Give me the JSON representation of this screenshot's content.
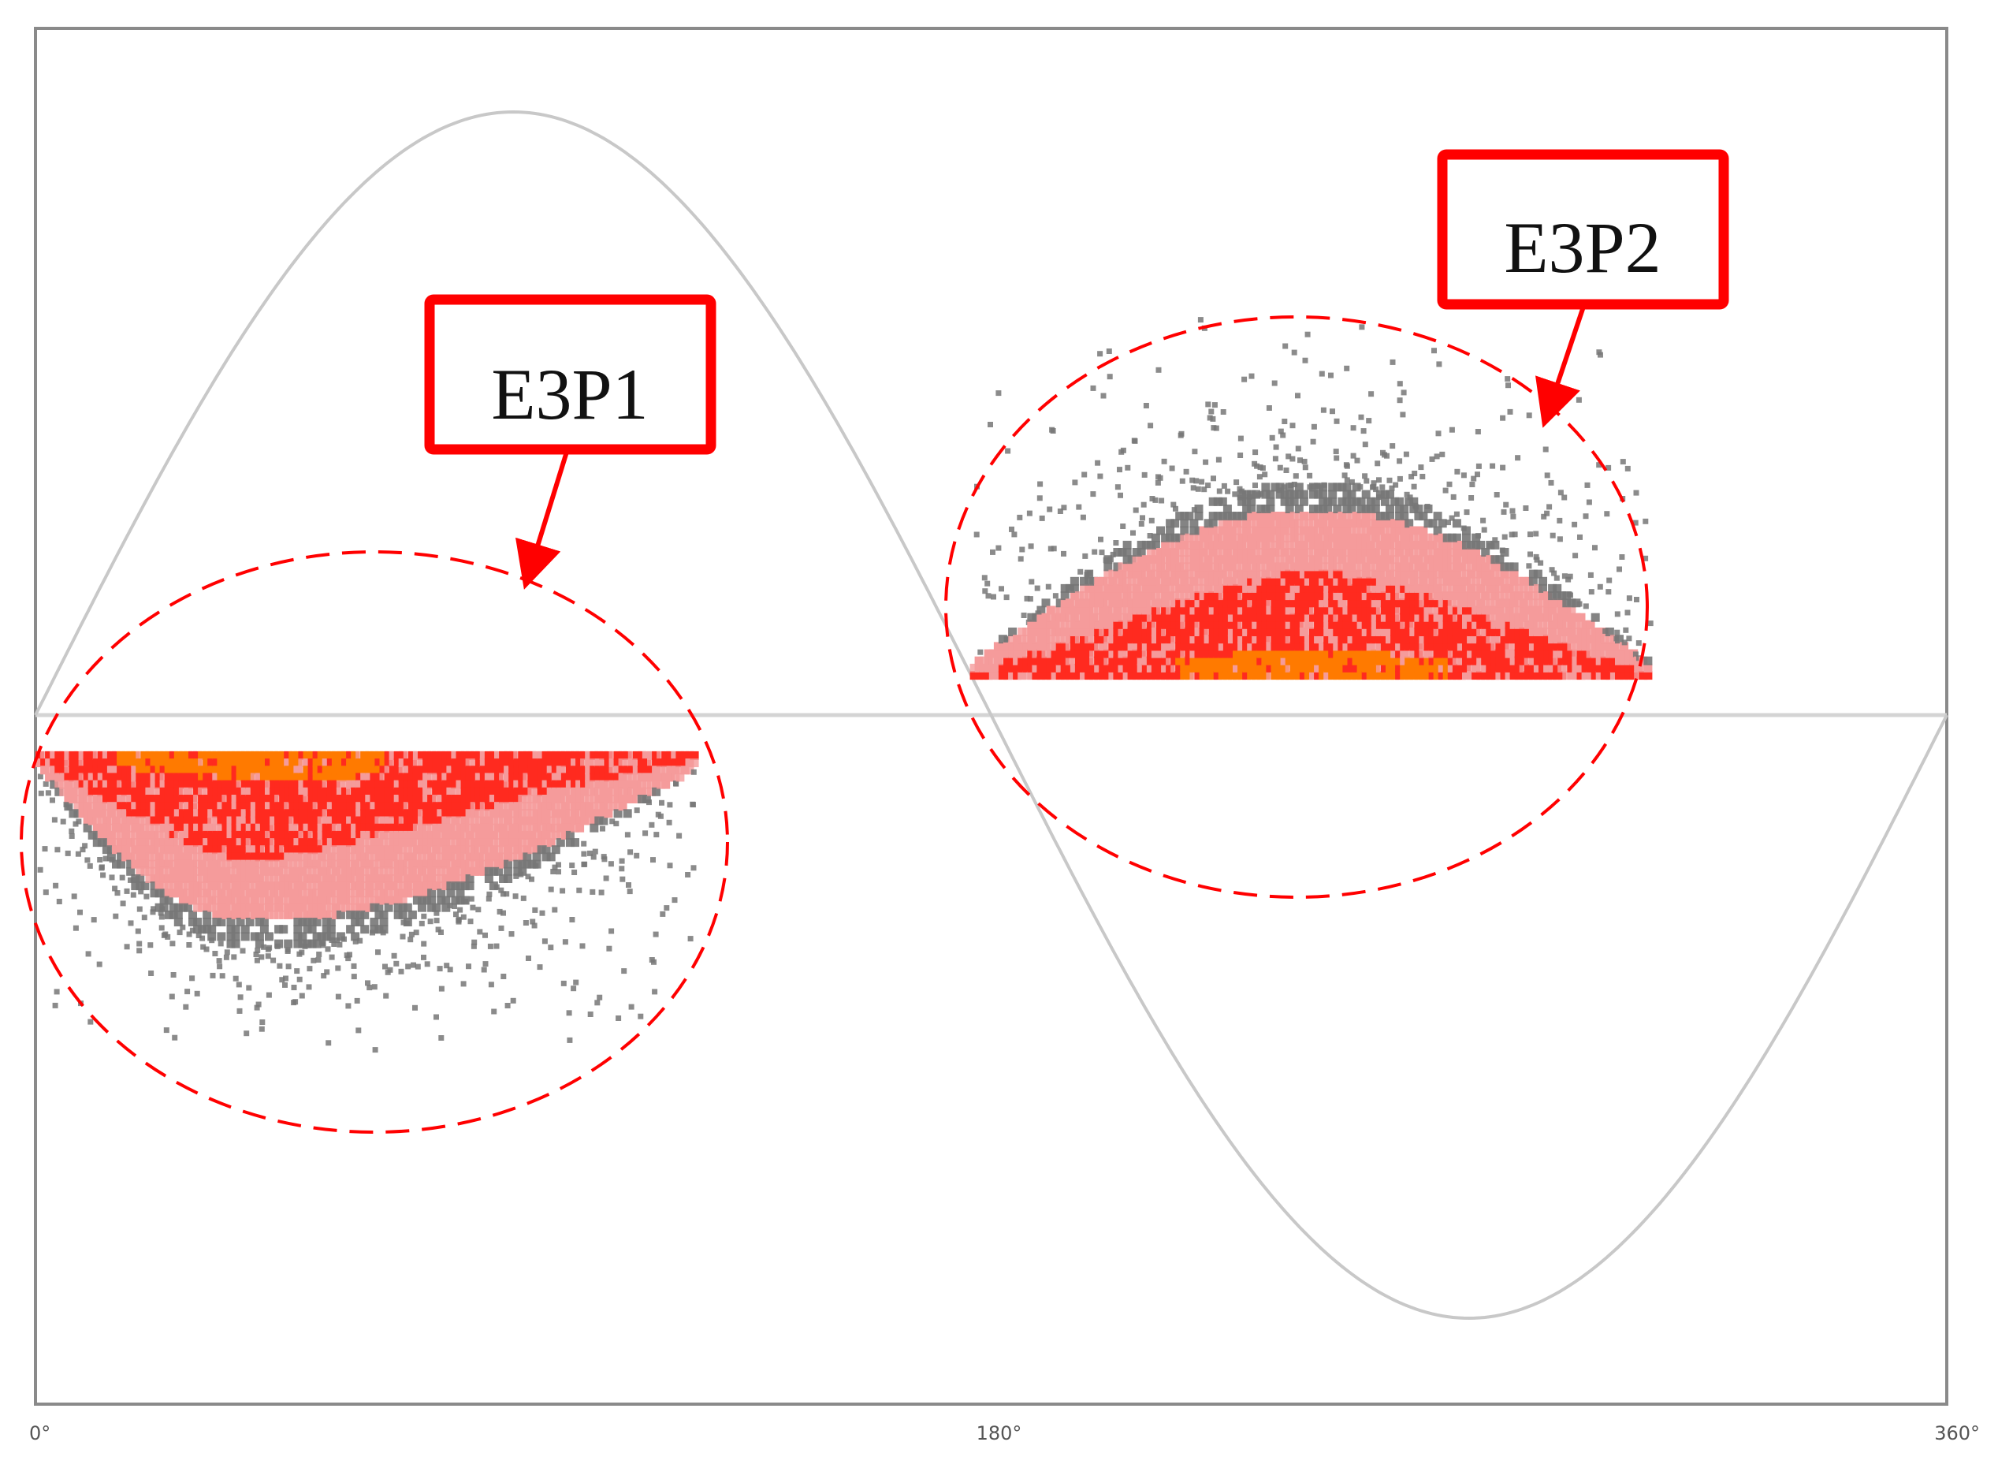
{
  "chart_data": {
    "type": "scatter",
    "title": "",
    "xlabel": "",
    "ylabel": "",
    "x_ticks": [
      "0°",
      "180°",
      "360°"
    ],
    "xlim": [
      0,
      360
    ],
    "ylim": [
      -1,
      1
    ],
    "grid": false,
    "reference_curve": {
      "name": "sine",
      "amplitude": 1
    },
    "clusters": [
      {
        "name": "E3P1",
        "phase_range": [
          0,
          124
        ],
        "peak_phase": 40,
        "sign": "negative",
        "peak_magnitude": 0.38,
        "outlier_magnitude": 0.57
      },
      {
        "name": "E3P2",
        "phase_range": [
          176,
          303
        ],
        "peak_phase": 240,
        "sign": "positive",
        "peak_magnitude": 0.38,
        "outlier_magnitude": 0.67
      }
    ],
    "annotations": [
      {
        "label": "E3P1",
        "target": "E3P1"
      },
      {
        "label": "E3P2",
        "target": "E3P2"
      }
    ],
    "colors": {
      "curve": "#c8c8c8",
      "axis": "#888888",
      "scatter_low": "#777777",
      "scatter_mid": "#f59b9b",
      "scatter_high": "#ff2a1f",
      "scatter_peak": "#ff7a00",
      "annotation": "#ff0000"
    }
  }
}
